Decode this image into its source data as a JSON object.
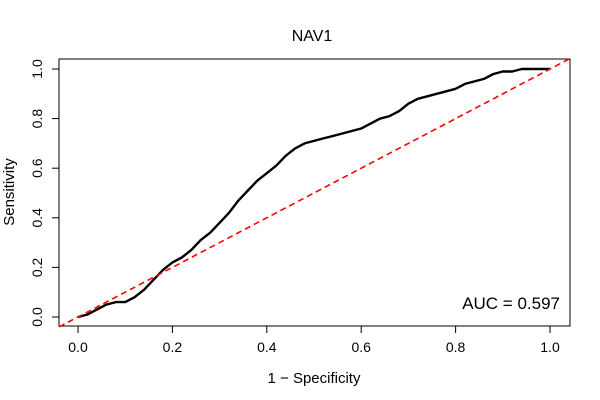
{
  "chart_data": {
    "type": "line",
    "title": "NAV1",
    "xlabel": "1 − Specificity",
    "ylabel": "Sensitivity",
    "xlim": [
      0.0,
      1.0
    ],
    "ylim": [
      0.0,
      1.0
    ],
    "xticks": [
      "0.0",
      "0.2",
      "0.4",
      "0.6",
      "0.8",
      "1.0"
    ],
    "yticks": [
      "0.0",
      "0.2",
      "0.4",
      "0.6",
      "0.8",
      "1.0"
    ],
    "grid": false,
    "annotation": "AUC = 0.597",
    "series": [
      {
        "color": "#000000",
        "style": "solid",
        "points": [
          [
            0.0,
            0.0
          ],
          [
            0.02,
            0.01
          ],
          [
            0.04,
            0.03
          ],
          [
            0.06,
            0.05
          ],
          [
            0.08,
            0.06
          ],
          [
            0.1,
            0.06
          ],
          [
            0.12,
            0.08
          ],
          [
            0.14,
            0.11
          ],
          [
            0.16,
            0.15
          ],
          [
            0.18,
            0.19
          ],
          [
            0.2,
            0.22
          ],
          [
            0.22,
            0.24
          ],
          [
            0.24,
            0.27
          ],
          [
            0.26,
            0.31
          ],
          [
            0.28,
            0.34
          ],
          [
            0.3,
            0.38
          ],
          [
            0.32,
            0.42
          ],
          [
            0.34,
            0.47
          ],
          [
            0.36,
            0.51
          ],
          [
            0.38,
            0.55
          ],
          [
            0.4,
            0.58
          ],
          [
            0.42,
            0.61
          ],
          [
            0.44,
            0.65
          ],
          [
            0.46,
            0.68
          ],
          [
            0.48,
            0.7
          ],
          [
            0.5,
            0.71
          ],
          [
            0.52,
            0.72
          ],
          [
            0.54,
            0.73
          ],
          [
            0.56,
            0.74
          ],
          [
            0.58,
            0.75
          ],
          [
            0.6,
            0.76
          ],
          [
            0.62,
            0.78
          ],
          [
            0.64,
            0.8
          ],
          [
            0.66,
            0.81
          ],
          [
            0.68,
            0.83
          ],
          [
            0.7,
            0.86
          ],
          [
            0.72,
            0.88
          ],
          [
            0.74,
            0.89
          ],
          [
            0.76,
            0.9
          ],
          [
            0.78,
            0.91
          ],
          [
            0.8,
            0.92
          ],
          [
            0.82,
            0.94
          ],
          [
            0.84,
            0.95
          ],
          [
            0.86,
            0.96
          ],
          [
            0.88,
            0.98
          ],
          [
            0.9,
            0.99
          ],
          [
            0.92,
            0.99
          ],
          [
            0.94,
            1.0
          ],
          [
            0.97,
            1.0
          ],
          [
            1.0,
            1.0
          ]
        ]
      },
      {
        "color": "#ff0000",
        "style": "dashed",
        "points": [
          [
            -0.04,
            -0.04
          ],
          [
            1.04,
            1.04
          ]
        ]
      }
    ]
  }
}
